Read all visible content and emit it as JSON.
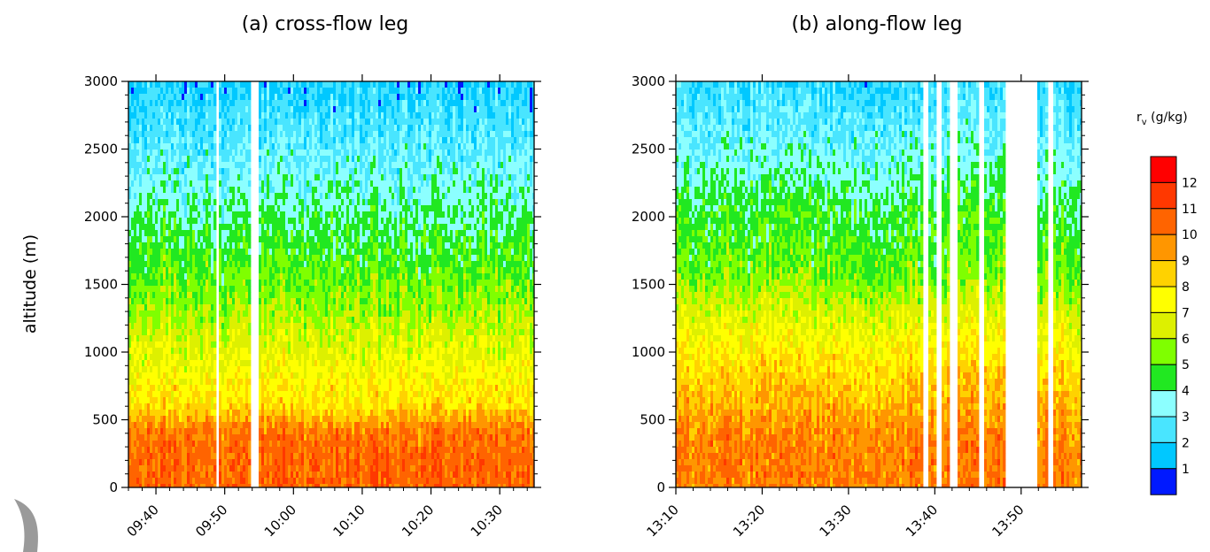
{
  "chart_data": [
    {
      "type": "heatmap",
      "title": "(a) cross-flow leg",
      "ylabel": "altitude (m)",
      "xlabel": "",
      "ylim": [
        0,
        3000
      ],
      "yticks": [
        0,
        500,
        1000,
        1500,
        2000,
        2500,
        3000
      ],
      "x_range": [
        "09:36",
        "10:35"
      ],
      "xticks": [
        "09:40",
        "09:50",
        "10:00",
        "10:10",
        "10:20",
        "10:30"
      ],
      "gaps": [
        [
          "09:48.7",
          "09:49.2"
        ],
        [
          "09:53.9",
          "09:55.1"
        ]
      ],
      "profile_rv_gkg": {
        "altitude_m": [
          0,
          200,
          400,
          600,
          800,
          1000,
          1300,
          1600,
          2000,
          2300,
          2600,
          3000
        ],
        "rv": [
          10.5,
          10.5,
          10.2,
          8.2,
          7.5,
          6.8,
          5.8,
          5.0,
          4.0,
          3.3,
          2.6,
          1.8
        ]
      }
    },
    {
      "type": "heatmap",
      "title": "(b) along-flow leg",
      "ylabel": "",
      "xlabel": "",
      "ylim": [
        0,
        3000
      ],
      "yticks": [
        0,
        500,
        1000,
        1500,
        2000,
        2500,
        3000
      ],
      "x_range": [
        "13:10",
        "13:57"
      ],
      "xticks": [
        "13:10",
        "13:20",
        "13:30",
        "13:40",
        "13:50"
      ],
      "gaps": [
        [
          "13:38.5",
          "13:39.3"
        ],
        [
          "13:40.3",
          "13:40.8"
        ],
        [
          "13:41.8",
          "13:42.6"
        ],
        [
          "13:45.2",
          "13:45.8"
        ],
        [
          "13:48.3",
          "13:51.8"
        ],
        [
          "13:53.2",
          "13:53.7"
        ]
      ],
      "profile_rv_gkg": {
        "altitude_m": [
          0,
          200,
          400,
          600,
          800,
          1000,
          1300,
          1600,
          2000,
          2300,
          2600,
          3000
        ],
        "rv": [
          10.0,
          10.0,
          9.8,
          9.0,
          8.5,
          7.8,
          6.5,
          5.2,
          4.6,
          3.8,
          3.0,
          2.2
        ]
      }
    }
  ],
  "colorbar": {
    "title_main": "r",
    "title_sub": "v",
    "title_unit": " (g/kg)",
    "labels": [
      "12",
      "11",
      "10",
      "9",
      "8",
      "7",
      "6",
      "5",
      "4",
      "3",
      "2",
      "1"
    ],
    "colors": [
      "#0019ff",
      "#00c8ff",
      "#49e5ff",
      "#8cffff",
      "#21e821",
      "#7fff00",
      "#ddf000",
      "#ffff00",
      "#ffd200",
      "#ff9600",
      "#ff6400",
      "#ff3800",
      "#ff0000"
    ]
  }
}
